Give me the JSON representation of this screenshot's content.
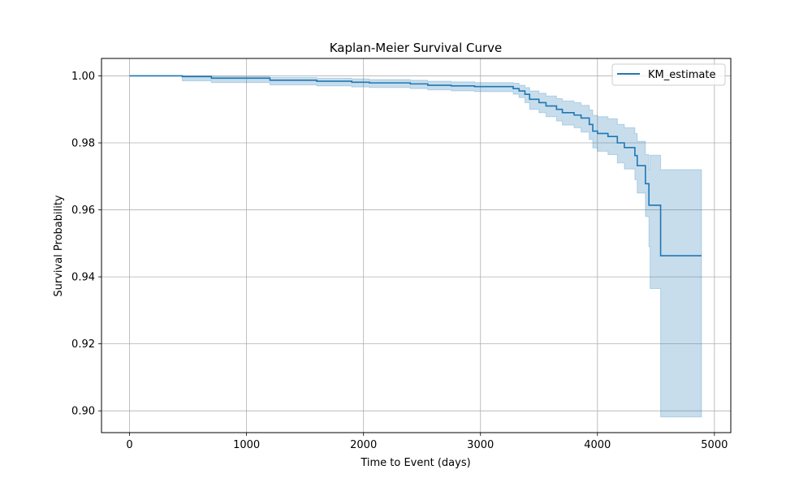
{
  "chart_data": {
    "type": "line",
    "subtype": "step-with-confidence-band",
    "title": "Kaplan-Meier Survival Curve",
    "xlabel": "Time to Event (days)",
    "ylabel": "Survival Probability",
    "xlim": [
      -240,
      5140
    ],
    "ylim": [
      0.8935,
      1.0052
    ],
    "xticks": [
      0,
      1000,
      2000,
      3000,
      4000,
      5000
    ],
    "xtick_labels": [
      "0",
      "1000",
      "2000",
      "3000",
      "4000",
      "5000"
    ],
    "yticks": [
      0.9,
      0.92,
      0.94,
      0.96,
      0.98,
      1.0
    ],
    "ytick_labels": [
      "0.90",
      "0.92",
      "0.94",
      "0.96",
      "0.98",
      "1.00"
    ],
    "grid": true,
    "legend": {
      "position": "top-right",
      "entries": [
        "KM_estimate"
      ]
    },
    "series": [
      {
        "name": "KM_estimate",
        "color": "#1f77b4",
        "band_color": "#1f77b4",
        "steps": [
          {
            "t": 0,
            "s": 1.0,
            "lo": 1.0,
            "hi": 1.0
          },
          {
            "t": 450,
            "s": 0.9998,
            "lo": 0.9985,
            "hi": 1.0
          },
          {
            "t": 700,
            "s": 0.9993,
            "lo": 0.998,
            "hi": 0.9998
          },
          {
            "t": 1200,
            "s": 0.9987,
            "lo": 0.9973,
            "hi": 0.9995
          },
          {
            "t": 1600,
            "s": 0.9984,
            "lo": 0.997,
            "hi": 0.9993
          },
          {
            "t": 1900,
            "s": 0.9981,
            "lo": 0.9967,
            "hi": 0.9991
          },
          {
            "t": 2050,
            "s": 0.9979,
            "lo": 0.9965,
            "hi": 0.9989
          },
          {
            "t": 2400,
            "s": 0.9976,
            "lo": 0.9962,
            "hi": 0.9987
          },
          {
            "t": 2550,
            "s": 0.9972,
            "lo": 0.9958,
            "hi": 0.9984
          },
          {
            "t": 2750,
            "s": 0.997,
            "lo": 0.9955,
            "hi": 0.9982
          },
          {
            "t": 2950,
            "s": 0.9968,
            "lo": 0.9953,
            "hi": 0.998
          },
          {
            "t": 3280,
            "s": 0.9962,
            "lo": 0.9945,
            "hi": 0.9978
          },
          {
            "t": 3330,
            "s": 0.9955,
            "lo": 0.9935,
            "hi": 0.9972
          },
          {
            "t": 3380,
            "s": 0.9945,
            "lo": 0.992,
            "hi": 0.9965
          },
          {
            "t": 3420,
            "s": 0.993,
            "lo": 0.99,
            "hi": 0.9955
          },
          {
            "t": 3500,
            "s": 0.992,
            "lo": 0.989,
            "hi": 0.9948
          },
          {
            "t": 3560,
            "s": 0.991,
            "lo": 0.9878,
            "hi": 0.994
          },
          {
            "t": 3650,
            "s": 0.99,
            "lo": 0.9865,
            "hi": 0.9932
          },
          {
            "t": 3700,
            "s": 0.989,
            "lo": 0.9853,
            "hi": 0.9925
          },
          {
            "t": 3800,
            "s": 0.9883,
            "lo": 0.9845,
            "hi": 0.992
          },
          {
            "t": 3860,
            "s": 0.9874,
            "lo": 0.9832,
            "hi": 0.9912
          },
          {
            "t": 3930,
            "s": 0.9855,
            "lo": 0.981,
            "hi": 0.9898
          },
          {
            "t": 3960,
            "s": 0.9835,
            "lo": 0.9785,
            "hi": 0.9882
          },
          {
            "t": 4000,
            "s": 0.9828,
            "lo": 0.9775,
            "hi": 0.9878
          },
          {
            "t": 4090,
            "s": 0.9819,
            "lo": 0.9765,
            "hi": 0.9872
          },
          {
            "t": 4170,
            "s": 0.98,
            "lo": 0.974,
            "hi": 0.9855
          },
          {
            "t": 4230,
            "s": 0.9786,
            "lo": 0.9722,
            "hi": 0.9845
          },
          {
            "t": 4320,
            "s": 0.9762,
            "lo": 0.969,
            "hi": 0.9828
          },
          {
            "t": 4340,
            "s": 0.9732,
            "lo": 0.965,
            "hi": 0.9805
          },
          {
            "t": 4410,
            "s": 0.9678,
            "lo": 0.958,
            "hi": 0.9765
          },
          {
            "t": 4440,
            "s": 0.9614,
            "lo": 0.949,
            "hi": 0.972
          },
          {
            "t": 4450,
            "s": 0.9614,
            "lo": 0.9365,
            "hi": 0.9763
          },
          {
            "t": 4540,
            "s": 0.9463,
            "lo": 0.8982,
            "hi": 0.972
          }
        ],
        "end_time": 4890
      }
    ]
  }
}
